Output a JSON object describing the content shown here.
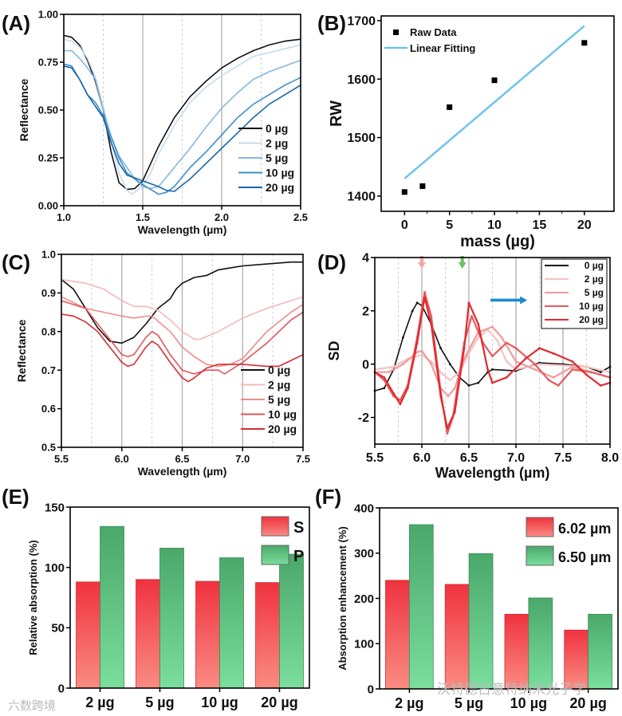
{
  "chart_data": [
    {
      "panel": "(A)",
      "type": "line",
      "xlabel": "Wavelength (µm)",
      "ylabel": "Reflectance",
      "xlim": [
        1.0,
        2.5
      ],
      "ylim": [
        0.0,
        1.0
      ],
      "xticks": [
        "1.0",
        "1.5",
        "2.0",
        "2.5"
      ],
      "yticks": [
        "0.00",
        "0.25",
        "0.50",
        "0.75",
        "1.00"
      ],
      "grid": "vertical",
      "legend": "bottom-right",
      "series": [
        {
          "name": "0 µg",
          "color": "#111111",
          "x": [
            1.0,
            1.05,
            1.1,
            1.15,
            1.2,
            1.25,
            1.3,
            1.35,
            1.4,
            1.45,
            1.5,
            1.55,
            1.6,
            1.7,
            1.8,
            1.9,
            2.0,
            2.1,
            2.2,
            2.3,
            2.4,
            2.5
          ],
          "y": [
            0.89,
            0.88,
            0.84,
            0.76,
            0.65,
            0.5,
            0.28,
            0.12,
            0.085,
            0.09,
            0.13,
            0.22,
            0.31,
            0.46,
            0.57,
            0.65,
            0.72,
            0.77,
            0.81,
            0.84,
            0.86,
            0.87
          ]
        },
        {
          "name": "2 µg",
          "color": "#c4dcef",
          "x": [
            1.0,
            1.05,
            1.1,
            1.15,
            1.2,
            1.25,
            1.3,
            1.35,
            1.4,
            1.43,
            1.5,
            1.55,
            1.6,
            1.7,
            1.8,
            1.9,
            2.0,
            2.1,
            2.2,
            2.3,
            2.4,
            2.5
          ],
          "y": [
            0.87,
            0.86,
            0.83,
            0.77,
            0.67,
            0.52,
            0.34,
            0.17,
            0.08,
            0.06,
            0.1,
            0.17,
            0.27,
            0.42,
            0.54,
            0.62,
            0.68,
            0.73,
            0.78,
            0.8,
            0.82,
            0.84
          ]
        },
        {
          "name": "5 µg",
          "color": "#86b8de",
          "x": [
            1.0,
            1.05,
            1.1,
            1.15,
            1.2,
            1.25,
            1.3,
            1.35,
            1.4,
            1.45,
            1.5,
            1.55,
            1.6,
            1.7,
            1.8,
            1.9,
            2.0,
            2.1,
            2.2,
            2.3,
            2.4,
            2.5
          ],
          "y": [
            0.81,
            0.81,
            0.77,
            0.72,
            0.66,
            0.5,
            0.36,
            0.26,
            0.2,
            0.14,
            0.1,
            0.09,
            0.1,
            0.2,
            0.3,
            0.41,
            0.51,
            0.59,
            0.66,
            0.7,
            0.73,
            0.76
          ]
        },
        {
          "name": "10 µg",
          "color": "#3d8ec6",
          "x": [
            1.0,
            1.05,
            1.1,
            1.15,
            1.2,
            1.25,
            1.3,
            1.35,
            1.4,
            1.5,
            1.6,
            1.65,
            1.7,
            1.8,
            1.9,
            2.0,
            2.1,
            2.2,
            2.3,
            2.4,
            2.5
          ],
          "y": [
            0.74,
            0.73,
            0.66,
            0.58,
            0.54,
            0.47,
            0.36,
            0.25,
            0.17,
            0.11,
            0.06,
            0.07,
            0.1,
            0.2,
            0.28,
            0.37,
            0.46,
            0.53,
            0.58,
            0.63,
            0.67
          ]
        },
        {
          "name": "20 µg",
          "color": "#1766a8",
          "x": [
            1.0,
            1.05,
            1.1,
            1.15,
            1.2,
            1.25,
            1.3,
            1.35,
            1.4,
            1.5,
            1.6,
            1.65,
            1.7,
            1.8,
            1.9,
            2.0,
            2.1,
            2.2,
            2.3,
            2.4,
            2.5
          ],
          "y": [
            0.73,
            0.72,
            0.66,
            0.58,
            0.52,
            0.46,
            0.33,
            0.22,
            0.16,
            0.13,
            0.1,
            0.08,
            0.075,
            0.14,
            0.22,
            0.3,
            0.38,
            0.46,
            0.53,
            0.58,
            0.63
          ]
        }
      ]
    },
    {
      "panel": "(B)",
      "type": "scatter",
      "xlabel": "mass (µg)",
      "ylabel": "RW",
      "xlim": [
        -2.6,
        23.3
      ],
      "ylim": [
        1374,
        1708
      ],
      "xticks": [
        "0",
        "5",
        "10",
        "15",
        "20"
      ],
      "yticks": [
        "1400",
        "1500",
        "1600",
        "1700"
      ],
      "legend": "top-left",
      "raw": {
        "name": "Raw Data",
        "color": "#000000",
        "x": [
          0,
          2,
          5,
          10,
          20
        ],
        "y": [
          1407,
          1417,
          1552,
          1598,
          1662
        ]
      },
      "fit": {
        "name": "Linear Fitting",
        "color": "#6ec3ec",
        "x": [
          0,
          20
        ],
        "y": [
          1430,
          1691
        ]
      }
    },
    {
      "panel": "(C)",
      "type": "line",
      "xlabel": "Wavelength (µm)",
      "ylabel": "Reflectance",
      "xlim": [
        5.5,
        7.5
      ],
      "ylim": [
        0.5,
        1.0
      ],
      "xticks": [
        "5.5",
        "6.0",
        "6.5",
        "7.0",
        "7.5"
      ],
      "yticks": [
        "0.5",
        "0.6",
        "0.7",
        "0.8",
        "0.9",
        "1.0"
      ],
      "grid": "vertical",
      "legend": "bottom-right",
      "series": [
        {
          "name": "0 µg",
          "color": "#111111",
          "x": [
            5.5,
            5.6,
            5.7,
            5.8,
            5.9,
            6.0,
            6.1,
            6.2,
            6.3,
            6.4,
            6.45,
            6.5,
            6.6,
            6.7,
            6.8,
            6.9,
            7.0,
            7.2,
            7.4,
            7.5
          ],
          "y": [
            0.935,
            0.91,
            0.86,
            0.81,
            0.775,
            0.77,
            0.785,
            0.82,
            0.86,
            0.885,
            0.91,
            0.925,
            0.94,
            0.945,
            0.96,
            0.965,
            0.97,
            0.975,
            0.98,
            0.98
          ]
        },
        {
          "name": "2 µg",
          "color": "#f4b8b8",
          "x": [
            5.5,
            5.7,
            5.85,
            6.0,
            6.1,
            6.2,
            6.3,
            6.4,
            6.5,
            6.6,
            6.65,
            6.8,
            7.0,
            7.2,
            7.4,
            7.5
          ],
          "y": [
            0.935,
            0.925,
            0.91,
            0.88,
            0.865,
            0.865,
            0.855,
            0.83,
            0.8,
            0.78,
            0.78,
            0.8,
            0.835,
            0.86,
            0.88,
            0.89
          ]
        },
        {
          "name": "5 µg",
          "color": "#ef8c8c",
          "x": [
            5.5,
            5.7,
            5.85,
            6.0,
            6.1,
            6.2,
            6.25,
            6.4,
            6.5,
            6.6,
            6.7,
            6.8,
            6.9,
            7.0,
            7.2,
            7.4,
            7.5
          ],
          "y": [
            0.89,
            0.86,
            0.85,
            0.84,
            0.835,
            0.84,
            0.84,
            0.8,
            0.76,
            0.735,
            0.715,
            0.71,
            0.715,
            0.73,
            0.8,
            0.85,
            0.87
          ]
        },
        {
          "name": "10 µg",
          "color": "#e4545a",
          "x": [
            5.5,
            5.7,
            5.8,
            5.9,
            6.0,
            6.05,
            6.1,
            6.2,
            6.25,
            6.3,
            6.4,
            6.5,
            6.6,
            6.7,
            6.8,
            6.85,
            7.0,
            7.2,
            7.4,
            7.5
          ],
          "y": [
            0.88,
            0.86,
            0.82,
            0.78,
            0.74,
            0.735,
            0.74,
            0.785,
            0.8,
            0.79,
            0.74,
            0.7,
            0.69,
            0.7,
            0.7,
            0.69,
            0.72,
            0.77,
            0.83,
            0.85
          ]
        },
        {
          "name": "20 µg",
          "color": "#d42e34",
          "x": [
            5.5,
            5.6,
            5.7,
            5.8,
            5.9,
            6.0,
            6.05,
            6.1,
            6.2,
            6.25,
            6.3,
            6.4,
            6.5,
            6.55,
            6.6,
            6.7,
            6.8,
            7.0,
            7.2,
            7.3,
            7.4,
            7.5
          ],
          "y": [
            0.845,
            0.84,
            0.825,
            0.8,
            0.76,
            0.72,
            0.71,
            0.715,
            0.76,
            0.775,
            0.765,
            0.72,
            0.68,
            0.67,
            0.68,
            0.705,
            0.715,
            0.715,
            0.71,
            0.71,
            0.725,
            0.74
          ]
        }
      ]
    },
    {
      "panel": "(D)",
      "type": "line",
      "xlabel": "Wavelength (µm)",
      "ylabel": "SD",
      "xlim": [
        5.5,
        8.0
      ],
      "ylim": [
        -3,
        4
      ],
      "xticks": [
        "5.5",
        "6.0",
        "6.5",
        "7.0",
        "7.5",
        "8.0"
      ],
      "yticks": [
        "-2",
        "0",
        "2",
        "4"
      ],
      "grid": "vertical",
      "legend": "top-right",
      "annotations": [
        {
          "kind": "down-arrow",
          "x": 6.0,
          "color": "#f4a6a6"
        },
        {
          "kind": "down-arrow",
          "x": 6.43,
          "color": "#6cbf62"
        },
        {
          "kind": "right-arrow",
          "x_from": 6.73,
          "x_to": 7.12,
          "y": 2.4,
          "color": "#1a8ad4"
        }
      ],
      "series": [
        {
          "name": "0 µg",
          "color": "#111111",
          "x": [
            5.5,
            5.6,
            5.7,
            5.8,
            5.9,
            5.95,
            6.0,
            6.1,
            6.2,
            6.3,
            6.4,
            6.5,
            6.6,
            6.7,
            6.75,
            7.0,
            7.25,
            7.5,
            7.75,
            7.9,
            8.0
          ],
          "y": [
            -1.0,
            -0.9,
            -0.2,
            1.0,
            2.0,
            2.3,
            2.2,
            1.5,
            0.6,
            0.0,
            -0.5,
            -0.8,
            -0.7,
            -0.3,
            -0.2,
            -0.25,
            0.05,
            0.0,
            -0.1,
            -0.3,
            -0.1
          ]
        },
        {
          "name": "2 µg",
          "color": "#f6c2c2",
          "x": [
            5.5,
            5.7,
            5.85,
            6.0,
            6.1,
            6.2,
            6.3,
            6.4,
            6.5,
            6.6,
            6.7,
            6.8,
            6.9,
            7.0,
            7.25,
            7.5,
            7.75,
            8.0
          ],
          "y": [
            -0.2,
            -0.1,
            0.2,
            0.35,
            0.1,
            -0.3,
            -0.6,
            -0.3,
            0.4,
            1.0,
            1.3,
            0.9,
            0.1,
            -0.2,
            0.0,
            -0.05,
            -0.1,
            -0.3
          ]
        },
        {
          "name": "5 µg",
          "color": "#f09a9a",
          "x": [
            5.5,
            5.65,
            5.8,
            5.95,
            6.0,
            6.1,
            6.2,
            6.28,
            6.35,
            6.45,
            6.6,
            6.75,
            6.85,
            7.0,
            7.2,
            7.4,
            7.6,
            7.8,
            8.0
          ],
          "y": [
            -0.3,
            -0.3,
            0.0,
            0.45,
            0.5,
            0.0,
            -0.9,
            -1.2,
            -0.9,
            0.2,
            1.2,
            1.4,
            1.0,
            0.1,
            -0.2,
            -0.5,
            -0.1,
            -0.3,
            -0.5
          ]
        },
        {
          "name": "10 µg",
          "color": "#e8585c",
          "x": [
            5.5,
            5.6,
            5.7,
            5.77,
            5.85,
            5.95,
            6.03,
            6.1,
            6.2,
            6.27,
            6.33,
            6.45,
            6.53,
            6.65,
            6.75,
            6.9,
            7.0,
            7.2,
            7.35,
            7.45,
            7.6,
            7.8,
            8.0
          ],
          "y": [
            -0.3,
            -0.6,
            -1.2,
            -1.35,
            -0.8,
            1.0,
            2.7,
            1.8,
            -1.0,
            -2.6,
            -2.0,
            0.8,
            1.8,
            0.8,
            0.3,
            0.8,
            0.6,
            0.0,
            -0.6,
            -0.8,
            -0.2,
            -0.3,
            -0.5
          ]
        },
        {
          "name": "20 µg",
          "color": "#e02a30",
          "x": [
            5.5,
            5.6,
            5.7,
            5.77,
            5.85,
            5.95,
            6.03,
            6.1,
            6.2,
            6.27,
            6.35,
            6.45,
            6.5,
            6.6,
            6.7,
            6.75,
            6.9,
            7.1,
            7.25,
            7.4,
            7.6,
            7.75,
            7.9,
            8.0
          ],
          "y": [
            -0.3,
            -0.5,
            -1.1,
            -1.5,
            -0.9,
            0.8,
            2.5,
            1.5,
            -1.2,
            -2.4,
            -1.8,
            0.6,
            2.3,
            1.5,
            -0.2,
            -0.7,
            -0.5,
            0.2,
            0.6,
            0.4,
            0.1,
            -0.4,
            -0.8,
            -0.7
          ]
        }
      ]
    },
    {
      "panel": "(E)",
      "type": "bar",
      "xlabel": "",
      "ylabel": "Relative absorption (%)",
      "ylim": [
        0,
        150
      ],
      "yticks": [
        "0",
        "50",
        "100",
        "150"
      ],
      "categories": [
        "2 µg",
        "5 µg",
        "10 µg",
        "20 µg"
      ],
      "legend": "top-right",
      "series": [
        {
          "name": "S",
          "color": "#f0323f",
          "values": [
            88,
            90,
            88.5,
            87.5
          ]
        },
        {
          "name": "P",
          "color": "#4aa86a",
          "values": [
            134,
            116,
            108,
            111
          ]
        }
      ]
    },
    {
      "panel": "(F)",
      "type": "bar",
      "xlabel": "",
      "ylabel": "Absorption enhancement (%)",
      "ylim": [
        0,
        400
      ],
      "yticks": [
        "0",
        "100",
        "200",
        "300",
        "400"
      ],
      "categories": [
        "2 µg",
        "5 µg",
        "10 µg",
        "20 µg"
      ],
      "legend": "top-right",
      "series": [
        {
          "name": "6.02 µm",
          "color": "#f0323f",
          "values": [
            240,
            231,
            165,
            130
          ]
        },
        {
          "name": "6.50 µm",
          "color": "#4aa86a",
          "values": [
            363,
            299,
            201,
            165
          ]
        }
      ]
    }
  ],
  "watermarks": {
    "left": "六数跨境",
    "right": "沃特德古意特纳米光子学"
  }
}
